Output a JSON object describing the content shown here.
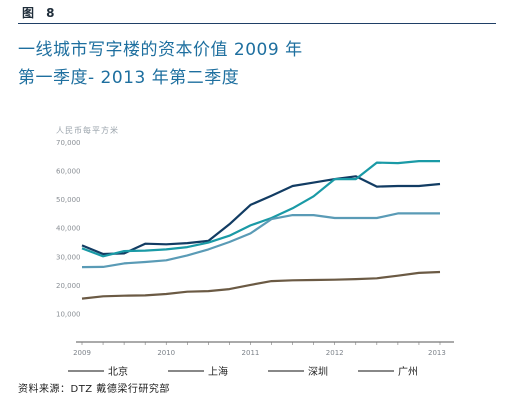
{
  "figure_label": "图 8",
  "title": "一线城市写字楼的资本价值 2009 年第一季度- 2013 年第二季度",
  "source": "资料来源：DTZ 戴德梁行研究部",
  "chart_data": {
    "type": "line",
    "title": "一线城市写字楼的资本价值 2009 年第一季度- 2013 年第二季度",
    "ylabel": "人民币每平方米",
    "xlabel": "",
    "ylim": [
      0,
      70000
    ],
    "yticks": [
      10000,
      20000,
      30000,
      40000,
      50000,
      60000,
      70000
    ],
    "ytick_labels": [
      "10,000",
      "20,000",
      "30,000",
      "40,000",
      "50,000",
      "60,000",
      "70,000"
    ],
    "x_ticks": [
      "2009",
      "2010",
      "2011",
      "2012",
      "2013"
    ],
    "x_periods": [
      "2009Q1",
      "2009Q2",
      "2009Q3",
      "2009Q4",
      "2010Q1",
      "2010Q2",
      "2010Q3",
      "2010Q4",
      "2011Q1",
      "2011Q2",
      "2011Q3",
      "2011Q4",
      "2012Q1",
      "2012Q2",
      "2012Q3",
      "2012Q4",
      "2013Q1",
      "2013Q2"
    ],
    "grid": false,
    "legend_position": "bottom",
    "series": [
      {
        "name": "北京",
        "color": "#123c63",
        "values": [
          33800,
          30800,
          31000,
          34400,
          34200,
          34600,
          35400,
          41200,
          48000,
          51200,
          54600,
          55800,
          57000,
          58000,
          54400,
          54600,
          54600,
          55300
        ]
      },
      {
        "name": "上海",
        "color": "#1a9aa6",
        "values": [
          32800,
          30000,
          31800,
          32000,
          32400,
          33200,
          34800,
          37200,
          40800,
          43400,
          46800,
          51000,
          57000,
          57000,
          62800,
          62600,
          63300,
          63300
        ]
      },
      {
        "name": "深圳",
        "color": "#5a9bb6",
        "values": [
          26200,
          26300,
          27500,
          28000,
          28600,
          30300,
          32400,
          35000,
          38000,
          43000,
          44400,
          44400,
          43400,
          43400,
          43400,
          45000,
          45000,
          45000
        ]
      },
      {
        "name": "广州",
        "color": "#6b5a44",
        "values": [
          15200,
          16000,
          16200,
          16300,
          16800,
          17600,
          17800,
          18500,
          20000,
          21300,
          21600,
          21700,
          21800,
          22000,
          22300,
          23200,
          24200,
          24500
        ]
      }
    ]
  }
}
